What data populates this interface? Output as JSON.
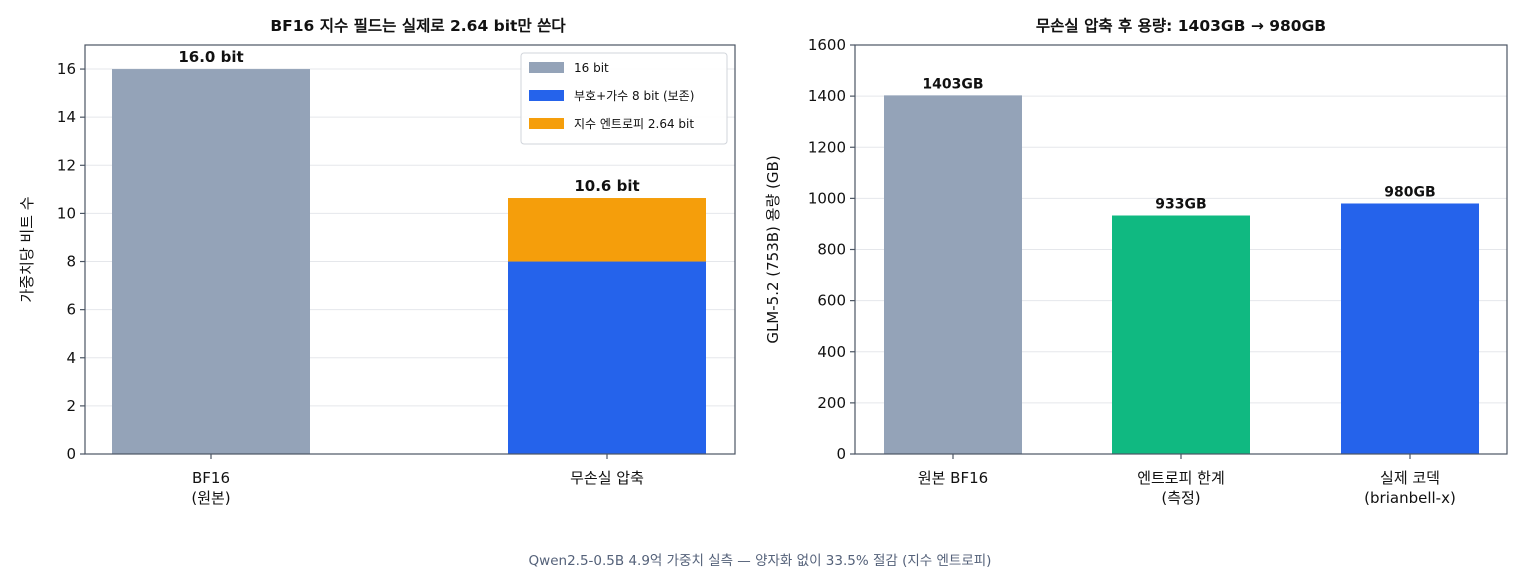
{
  "caption": "Qwen2.5-0.5B 4.9억 가중치 실측 — 양자화 없이 33.5% 절감 (지수 엔트로피)",
  "colors": {
    "gray": "#94a3b8",
    "blue": "#2563eb",
    "orange": "#f59e0b",
    "green": "#10b981",
    "axis": "#4b5563",
    "grid": "#e5e7eb"
  },
  "chart_data": [
    {
      "type": "bar",
      "stacked": true,
      "title": "BF16 지수 필드는 실제로 2.64 bit만 쓴다",
      "ylabel": "가중치당 비트 수",
      "xlabel": "",
      "ylim": [
        0,
        17
      ],
      "yticks": [
        0,
        2,
        4,
        6,
        8,
        10,
        12,
        14,
        16
      ],
      "grid": "y",
      "legend": "top-right",
      "categories": [
        [
          "BF16",
          "(원본)"
        ],
        [
          "무손실 압축"
        ]
      ],
      "series": [
        {
          "name": "16 bit",
          "color": "#94a3b8",
          "values": [
            16,
            0
          ]
        },
        {
          "name": "부호+가수 8 bit (보존)",
          "color": "#2563eb",
          "values": [
            0,
            8
          ]
        },
        {
          "name": "지수 엔트로피 2.64 bit",
          "color": "#f59e0b",
          "values": [
            0,
            2.64
          ]
        }
      ],
      "data_labels": [
        "16.0 bit",
        "10.6 bit"
      ],
      "totals": [
        16.0,
        10.64
      ]
    },
    {
      "type": "bar",
      "title": "무손실 압축 후 용량: 1403GB → 980GB",
      "ylabel": "GLM-5.2 (753B) 용량 (GB)",
      "xlabel": "",
      "ylim": [
        0,
        1600
      ],
      "yticks": [
        0,
        200,
        400,
        600,
        800,
        1000,
        1200,
        1400,
        1600
      ],
      "grid": "y",
      "categories": [
        [
          "원본 BF16"
        ],
        [
          "엔트로피 한계",
          "(측정)"
        ],
        [
          "실제 코덱",
          "(brianbell-x)"
        ]
      ],
      "values": [
        1403,
        933,
        980
      ],
      "colors": [
        "#94a3b8",
        "#10b981",
        "#2563eb"
      ],
      "data_labels": [
        "1403GB",
        "933GB",
        "980GB"
      ]
    }
  ]
}
